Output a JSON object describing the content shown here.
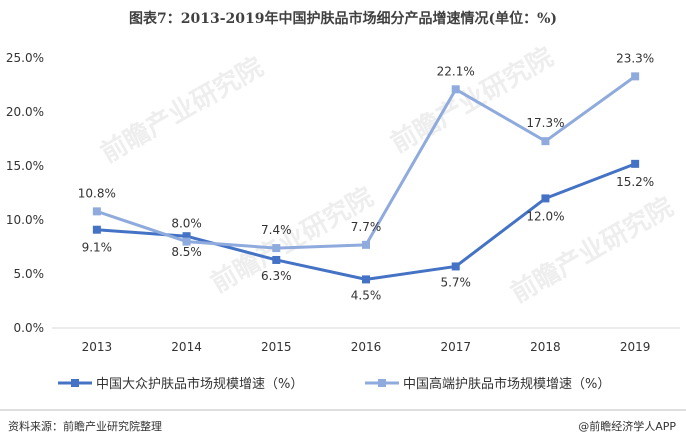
{
  "title": "图表7：2013-2019年中国护肤品市场细分产品增速情况(单位：%)",
  "footer": {
    "source": "资料来源：前瞻产业研究院整理",
    "brand": "@前瞻经济学人APP"
  },
  "watermark": "前瞻产业研究院",
  "chart_data": {
    "type": "line",
    "x": [
      "2013",
      "2014",
      "2015",
      "2016",
      "2017",
      "2018",
      "2019"
    ],
    "ylim": [
      0,
      25
    ],
    "yticks": [
      "0.0%",
      "5.0%",
      "10.0%",
      "15.0%",
      "20.0%",
      "25.0%"
    ],
    "series": [
      {
        "name": "中国大众护肤品市场规模增速（%）",
        "color": "#4472C4",
        "values": [
          9.1,
          8.5,
          6.3,
          4.5,
          5.7,
          12.0,
          15.2
        ],
        "labels": [
          "9.1%",
          "8.5%",
          "6.3%",
          "4.5%",
          "5.7%",
          "12.0%",
          "15.2%"
        ]
      },
      {
        "name": "中国高端护肤品市场规模增速（%）",
        "color": "#8FAADC",
        "values": [
          10.8,
          8.0,
          7.4,
          7.7,
          22.1,
          17.3,
          23.3
        ],
        "labels": [
          "10.8%",
          "8.0%",
          "7.4%",
          "7.7%",
          "22.1%",
          "17.3%",
          "23.3%"
        ]
      }
    ]
  }
}
